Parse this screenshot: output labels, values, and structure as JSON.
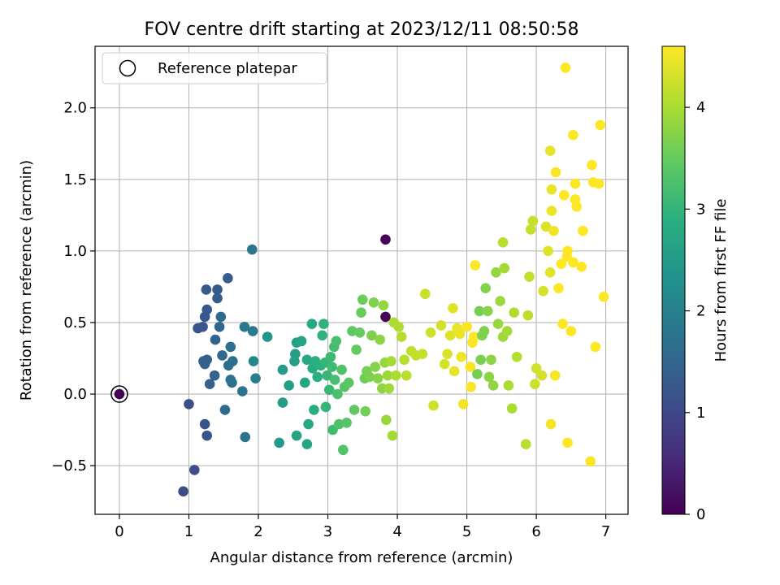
{
  "chart_data": {
    "type": "scatter",
    "title": "FOV centre drift starting at 2023/12/11 08:50:58",
    "xlabel": "Angular distance from reference (arcmin)",
    "ylabel": "Rotation from reference (arcmin)",
    "xlim": [
      -0.35,
      7.32
    ],
    "ylim": [
      -0.84,
      2.43
    ],
    "xticks": [
      0,
      1,
      2,
      3,
      4,
      5,
      6,
      7
    ],
    "xtick_labels": [
      "0",
      "1",
      "2",
      "3",
      "4",
      "5",
      "6",
      "7"
    ],
    "yticks": [
      -0.5,
      0.0,
      0.5,
      1.0,
      1.5,
      2.0
    ],
    "ytick_labels": [
      "−0.5",
      "0.0",
      "0.5",
      "1.0",
      "1.5",
      "2.0"
    ],
    "grid": true,
    "legend": {
      "placement": "upper-left",
      "entries": [
        "Reference platepar"
      ]
    },
    "reference_point": {
      "x": 0.0,
      "y": 0.0,
      "c": 0.0
    },
    "colorbar": {
      "label": "Hours from first FF file",
      "range": [
        0,
        4.6
      ],
      "ticks": [
        0,
        1,
        2,
        3,
        4
      ],
      "tick_labels": [
        "0",
        "1",
        "2",
        "3",
        "4"
      ],
      "colormap": [
        "#440154",
        "#472d7b",
        "#3b528b",
        "#2c728e",
        "#21918c",
        "#28ae80",
        "#5ec962",
        "#addc30",
        "#fde725"
      ]
    },
    "points": [
      {
        "x": 0.0,
        "y": 0.0,
        "c": 0.0
      },
      {
        "x": 3.83,
        "y": 1.08,
        "c": 0.03
      },
      {
        "x": 3.83,
        "y": 0.54,
        "c": 0.05
      },
      {
        "x": 0.92,
        "y": -0.68,
        "c": 1.05
      },
      {
        "x": 1.08,
        "y": -0.53,
        "c": 1.08
      },
      {
        "x": 1.0,
        "y": -0.07,
        "c": 1.1
      },
      {
        "x": 1.23,
        "y": -0.21,
        "c": 1.13
      },
      {
        "x": 1.26,
        "y": -0.29,
        "c": 1.15
      },
      {
        "x": 1.13,
        "y": 0.46,
        "c": 1.18
      },
      {
        "x": 1.2,
        "y": 0.47,
        "c": 1.2
      },
      {
        "x": 1.23,
        "y": 0.54,
        "c": 1.22
      },
      {
        "x": 1.26,
        "y": 0.59,
        "c": 1.25
      },
      {
        "x": 1.25,
        "y": 0.73,
        "c": 1.27
      },
      {
        "x": 1.41,
        "y": 0.73,
        "c": 1.3
      },
      {
        "x": 1.41,
        "y": 0.67,
        "c": 1.32
      },
      {
        "x": 1.56,
        "y": 0.81,
        "c": 1.35
      },
      {
        "x": 1.21,
        "y": 0.23,
        "c": 1.37
      },
      {
        "x": 1.23,
        "y": 0.21,
        "c": 1.4
      },
      {
        "x": 1.26,
        "y": 0.24,
        "c": 1.42
      },
      {
        "x": 1.3,
        "y": 0.07,
        "c": 1.45
      },
      {
        "x": 1.37,
        "y": 0.13,
        "c": 1.47
      },
      {
        "x": 1.38,
        "y": 0.38,
        "c": 1.5
      },
      {
        "x": 1.44,
        "y": 0.47,
        "c": 1.52
      },
      {
        "x": 1.46,
        "y": 0.54,
        "c": 1.55
      },
      {
        "x": 1.48,
        "y": 0.27,
        "c": 1.57
      },
      {
        "x": 1.52,
        "y": -0.11,
        "c": 1.6
      },
      {
        "x": 1.57,
        "y": 0.2,
        "c": 1.62
      },
      {
        "x": 1.6,
        "y": 0.33,
        "c": 1.65
      },
      {
        "x": 1.63,
        "y": 0.23,
        "c": 1.67
      },
      {
        "x": 1.6,
        "y": 0.1,
        "c": 1.7
      },
      {
        "x": 1.62,
        "y": 0.08,
        "c": 1.72
      },
      {
        "x": 1.77,
        "y": 0.02,
        "c": 1.75
      },
      {
        "x": 1.81,
        "y": -0.3,
        "c": 1.77
      },
      {
        "x": 1.91,
        "y": 1.01,
        "c": 1.8
      },
      {
        "x": 1.8,
        "y": 0.47,
        "c": 1.85
      },
      {
        "x": 1.92,
        "y": 0.44,
        "c": 1.9
      },
      {
        "x": 1.96,
        "y": 0.11,
        "c": 1.95
      },
      {
        "x": 1.93,
        "y": 0.23,
        "c": 2.15
      },
      {
        "x": 2.13,
        "y": 0.4,
        "c": 2.4
      },
      {
        "x": 2.3,
        "y": -0.34,
        "c": 2.45
      },
      {
        "x": 2.35,
        "y": 0.17,
        "c": 2.5
      },
      {
        "x": 2.35,
        "y": -0.06,
        "c": 2.52
      },
      {
        "x": 2.44,
        "y": 0.06,
        "c": 2.55
      },
      {
        "x": 2.52,
        "y": 0.23,
        "c": 2.57
      },
      {
        "x": 2.53,
        "y": 0.28,
        "c": 2.6
      },
      {
        "x": 2.55,
        "y": 0.36,
        "c": 2.62
      },
      {
        "x": 2.55,
        "y": -0.29,
        "c": 2.65
      },
      {
        "x": 2.62,
        "y": 0.37,
        "c": 2.67
      },
      {
        "x": 2.67,
        "y": 0.08,
        "c": 2.7
      },
      {
        "x": 2.7,
        "y": -0.35,
        "c": 2.72
      },
      {
        "x": 2.72,
        "y": -0.21,
        "c": 2.75
      },
      {
        "x": 2.7,
        "y": 0.24,
        "c": 2.77
      },
      {
        "x": 2.77,
        "y": 0.49,
        "c": 2.8
      },
      {
        "x": 2.78,
        "y": 0.18,
        "c": 2.82
      },
      {
        "x": 2.8,
        "y": -0.11,
        "c": 2.85
      },
      {
        "x": 2.82,
        "y": 0.23,
        "c": 2.87
      },
      {
        "x": 2.85,
        "y": 0.12,
        "c": 2.9
      },
      {
        "x": 2.9,
        "y": 0.2,
        "c": 2.92
      },
      {
        "x": 2.92,
        "y": 0.41,
        "c": 2.95
      },
      {
        "x": 2.94,
        "y": 0.49,
        "c": 2.97
      },
      {
        "x": 2.96,
        "y": 0.22,
        "c": 3.0
      },
      {
        "x": 2.97,
        "y": -0.09,
        "c": 3.02
      },
      {
        "x": 2.99,
        "y": 0.13,
        "c": 3.05
      },
      {
        "x": 3.02,
        "y": 0.03,
        "c": 3.07
      },
      {
        "x": 3.04,
        "y": 0.26,
        "c": 3.1
      },
      {
        "x": 3.06,
        "y": 0.19,
        "c": 3.12
      },
      {
        "x": 3.07,
        "y": -0.25,
        "c": 3.15
      },
      {
        "x": 3.09,
        "y": 0.33,
        "c": 3.17
      },
      {
        "x": 3.1,
        "y": 0.1,
        "c": 3.2
      },
      {
        "x": 3.12,
        "y": 0.37,
        "c": 3.22
      },
      {
        "x": 3.14,
        "y": 0.0,
        "c": 3.25
      },
      {
        "x": 3.16,
        "y": -0.21,
        "c": 3.27
      },
      {
        "x": 3.2,
        "y": 0.17,
        "c": 3.3
      },
      {
        "x": 3.22,
        "y": -0.39,
        "c": 3.32
      },
      {
        "x": 3.24,
        "y": 0.05,
        "c": 3.35
      },
      {
        "x": 3.27,
        "y": -0.2,
        "c": 3.37
      },
      {
        "x": 3.3,
        "y": 0.08,
        "c": 3.4
      },
      {
        "x": 3.35,
        "y": 0.44,
        "c": 3.42
      },
      {
        "x": 3.38,
        "y": -0.11,
        "c": 3.45
      },
      {
        "x": 3.41,
        "y": 0.31,
        "c": 3.47
      },
      {
        "x": 3.46,
        "y": 0.43,
        "c": 3.5
      },
      {
        "x": 3.48,
        "y": 0.57,
        "c": 3.52
      },
      {
        "x": 3.5,
        "y": 0.66,
        "c": 3.55
      },
      {
        "x": 3.53,
        "y": 0.11,
        "c": 3.57
      },
      {
        "x": 3.54,
        "y": -0.12,
        "c": 3.6
      },
      {
        "x": 3.56,
        "y": 0.16,
        "c": 3.62
      },
      {
        "x": 3.6,
        "y": 0.12,
        "c": 3.65
      },
      {
        "x": 3.63,
        "y": 0.41,
        "c": 3.67
      },
      {
        "x": 3.66,
        "y": 0.64,
        "c": 3.7
      },
      {
        "x": 3.68,
        "y": 0.19,
        "c": 3.72
      },
      {
        "x": 3.72,
        "y": 0.11,
        "c": 3.75
      },
      {
        "x": 3.75,
        "y": 0.38,
        "c": 3.77
      },
      {
        "x": 3.78,
        "y": 0.04,
        "c": 3.8
      },
      {
        "x": 3.8,
        "y": 0.62,
        "c": 3.82
      },
      {
        "x": 3.82,
        "y": 0.22,
        "c": 3.85
      },
      {
        "x": 3.84,
        "y": -0.18,
        "c": 3.87
      },
      {
        "x": 3.86,
        "y": 0.13,
        "c": 3.9
      },
      {
        "x": 3.88,
        "y": 0.04,
        "c": 3.92
      },
      {
        "x": 3.91,
        "y": 0.23,
        "c": 3.95
      },
      {
        "x": 3.93,
        "y": -0.29,
        "c": 3.97
      },
      {
        "x": 3.95,
        "y": 0.5,
        "c": 4.0
      },
      {
        "x": 3.98,
        "y": 0.13,
        "c": 4.02
      },
      {
        "x": 4.02,
        "y": 0.47,
        "c": 4.05
      },
      {
        "x": 4.06,
        "y": 0.4,
        "c": 4.07
      },
      {
        "x": 4.1,
        "y": 0.24,
        "c": 4.1
      },
      {
        "x": 4.13,
        "y": 0.13,
        "c": 4.12
      },
      {
        "x": 4.2,
        "y": 0.3,
        "c": 4.15
      },
      {
        "x": 4.27,
        "y": 0.27,
        "c": 4.17
      },
      {
        "x": 4.36,
        "y": 0.28,
        "c": 4.2
      },
      {
        "x": 4.4,
        "y": 0.7,
        "c": 4.22
      },
      {
        "x": 4.48,
        "y": 0.43,
        "c": 4.25
      },
      {
        "x": 4.52,
        "y": -0.08,
        "c": 4.27
      },
      {
        "x": 4.63,
        "y": 0.48,
        "c": 4.3
      },
      {
        "x": 4.68,
        "y": 0.21,
        "c": 4.32
      },
      {
        "x": 4.72,
        "y": 0.28,
        "c": 4.35
      },
      {
        "x": 4.76,
        "y": 0.41,
        "c": 4.37
      },
      {
        "x": 4.8,
        "y": 0.6,
        "c": 4.4
      },
      {
        "x": 4.82,
        "y": 0.16,
        "c": 4.42
      },
      {
        "x": 4.86,
        "y": 0.46,
        "c": 4.45
      },
      {
        "x": 4.9,
        "y": 0.42,
        "c": 4.47
      },
      {
        "x": 4.92,
        "y": 0.26,
        "c": 4.5
      },
      {
        "x": 4.95,
        "y": -0.07,
        "c": 4.52
      },
      {
        "x": 5.0,
        "y": 0.47,
        "c": 4.55
      },
      {
        "x": 5.05,
        "y": 0.19,
        "c": 4.56
      },
      {
        "x": 5.06,
        "y": 0.05,
        "c": 4.57
      },
      {
        "x": 5.08,
        "y": 0.36,
        "c": 4.58
      },
      {
        "x": 5.1,
        "y": 0.4,
        "c": 4.59
      },
      {
        "x": 5.12,
        "y": 0.9,
        "c": 4.6
      },
      {
        "x": 5.15,
        "y": 0.14,
        "c": 3.6
      },
      {
        "x": 5.18,
        "y": 0.58,
        "c": 3.62
      },
      {
        "x": 5.2,
        "y": 0.24,
        "c": 3.65
      },
      {
        "x": 5.22,
        "y": 0.41,
        "c": 3.67
      },
      {
        "x": 5.25,
        "y": 0.44,
        "c": 3.7
      },
      {
        "x": 5.27,
        "y": 0.74,
        "c": 3.72
      },
      {
        "x": 5.3,
        "y": 0.58,
        "c": 3.75
      },
      {
        "x": 5.32,
        "y": 0.12,
        "c": 3.77
      },
      {
        "x": 5.35,
        "y": 0.24,
        "c": 3.8
      },
      {
        "x": 5.38,
        "y": 0.06,
        "c": 3.82
      },
      {
        "x": 5.42,
        "y": 0.85,
        "c": 3.85
      },
      {
        "x": 5.45,
        "y": 0.49,
        "c": 3.87
      },
      {
        "x": 5.48,
        "y": 0.65,
        "c": 3.9
      },
      {
        "x": 5.52,
        "y": 0.4,
        "c": 3.92
      },
      {
        "x": 5.54,
        "y": 0.88,
        "c": 3.95
      },
      {
        "x": 5.58,
        "y": 0.44,
        "c": 3.97
      },
      {
        "x": 5.6,
        "y": 0.06,
        "c": 4.0
      },
      {
        "x": 5.65,
        "y": -0.1,
        "c": 4.02
      },
      {
        "x": 5.68,
        "y": 0.57,
        "c": 4.05
      },
      {
        "x": 5.72,
        "y": 0.26,
        "c": 4.07
      },
      {
        "x": 5.52,
        "y": 1.06,
        "c": 4.1
      },
      {
        "x": 5.85,
        "y": -0.35,
        "c": 4.12
      },
      {
        "x": 5.88,
        "y": 0.55,
        "c": 4.15
      },
      {
        "x": 5.9,
        "y": 0.82,
        "c": 4.17
      },
      {
        "x": 5.92,
        "y": 1.15,
        "c": 4.2
      },
      {
        "x": 5.95,
        "y": 1.21,
        "c": 4.22
      },
      {
        "x": 5.98,
        "y": 0.07,
        "c": 4.25
      },
      {
        "x": 6.0,
        "y": 0.18,
        "c": 4.27
      },
      {
        "x": 6.08,
        "y": 0.13,
        "c": 4.3
      },
      {
        "x": 6.1,
        "y": 0.72,
        "c": 4.32
      },
      {
        "x": 6.14,
        "y": 1.17,
        "c": 4.35
      },
      {
        "x": 6.17,
        "y": 1.0,
        "c": 4.37
      },
      {
        "x": 6.2,
        "y": 0.85,
        "c": 4.4
      },
      {
        "x": 6.2,
        "y": 1.7,
        "c": 4.42
      },
      {
        "x": 6.22,
        "y": 1.43,
        "c": 4.45
      },
      {
        "x": 6.22,
        "y": 1.28,
        "c": 4.47
      },
      {
        "x": 6.25,
        "y": 1.14,
        "c": 4.5
      },
      {
        "x": 6.21,
        "y": -0.21,
        "c": 4.52
      },
      {
        "x": 6.27,
        "y": 0.13,
        "c": 4.55
      },
      {
        "x": 6.28,
        "y": 1.55,
        "c": 4.57
      },
      {
        "x": 6.32,
        "y": 0.74,
        "c": 4.6
      },
      {
        "x": 6.36,
        "y": 0.91,
        "c": 4.6
      },
      {
        "x": 6.38,
        "y": 0.49,
        "c": 4.6
      },
      {
        "x": 6.4,
        "y": 1.39,
        "c": 4.6
      },
      {
        "x": 6.42,
        "y": 2.28,
        "c": 4.6
      },
      {
        "x": 6.44,
        "y": 0.96,
        "c": 4.6
      },
      {
        "x": 6.45,
        "y": 1.0,
        "c": 4.6
      },
      {
        "x": 6.45,
        "y": -0.34,
        "c": 4.6
      },
      {
        "x": 6.5,
        "y": 0.44,
        "c": 4.6
      },
      {
        "x": 6.53,
        "y": 1.81,
        "c": 4.6
      },
      {
        "x": 6.53,
        "y": 0.92,
        "c": 4.6
      },
      {
        "x": 6.56,
        "y": 1.47,
        "c": 4.6
      },
      {
        "x": 6.56,
        "y": 1.36,
        "c": 4.6
      },
      {
        "x": 6.58,
        "y": 1.31,
        "c": 4.6
      },
      {
        "x": 6.65,
        "y": 0.89,
        "c": 4.6
      },
      {
        "x": 6.67,
        "y": 1.14,
        "c": 4.6
      },
      {
        "x": 6.78,
        "y": -0.47,
        "c": 4.6
      },
      {
        "x": 6.8,
        "y": 1.6,
        "c": 4.6
      },
      {
        "x": 6.82,
        "y": 1.48,
        "c": 4.6
      },
      {
        "x": 6.85,
        "y": 0.33,
        "c": 4.6
      },
      {
        "x": 6.9,
        "y": 1.47,
        "c": 4.6
      },
      {
        "x": 6.92,
        "y": 1.88,
        "c": 4.6
      },
      {
        "x": 6.97,
        "y": 0.68,
        "c": 4.6
      }
    ]
  }
}
